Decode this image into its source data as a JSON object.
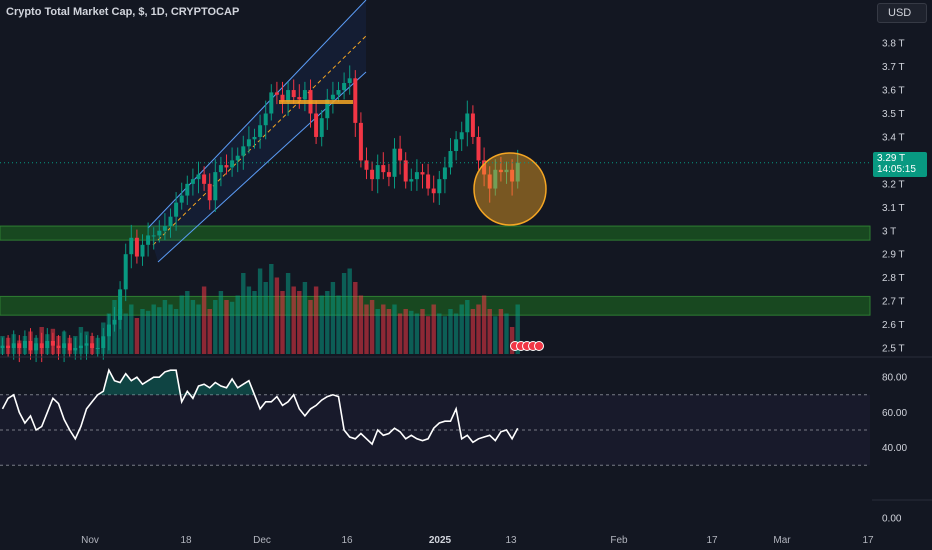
{
  "header": {
    "title": "Crypto Total Market Cap, $, 1D, CRYPTOCAP",
    "currency_button": "USD"
  },
  "last_price": {
    "value": "3.29 T",
    "countdown": "14:05:15",
    "price": 3.29
  },
  "colors": {
    "background": "#131722",
    "up": "#089981",
    "down": "#f23645",
    "rsi_line": "#ffffff",
    "zone": "#1b5e20",
    "annotation": "#f5a623"
  },
  "chart_data": [
    {
      "type": "candlestick",
      "title": "Crypto Total Market Cap, $, 1D, CRYPTOCAP",
      "ylim": [
        2.47,
        3.93
      ],
      "y_ticks": [
        "3.8 T",
        "3.7 T",
        "3.6 T",
        "3.5 T",
        "3.4 T",
        "3.2 T",
        "3.1 T",
        "3 T",
        "2.9 T",
        "2.8 T",
        "2.7 T",
        "2.6 T",
        "2.5 T"
      ],
      "y_tick_values": [
        3.8,
        3.7,
        3.6,
        3.5,
        3.4,
        3.2,
        3.1,
        3.0,
        2.9,
        2.8,
        2.7,
        2.6,
        2.5
      ],
      "x_ticks": [
        "Nov",
        "18",
        "Dec",
        "16",
        "2025",
        "13",
        "Feb",
        "17",
        "Mar",
        "17"
      ],
      "support_zones": [
        [
          2.96,
          3.02
        ],
        [
          2.64,
          2.72
        ]
      ],
      "closes": [
        2.51,
        2.5,
        2.52,
        2.5,
        2.53,
        2.49,
        2.52,
        2.5,
        2.53,
        2.51,
        2.5,
        2.52,
        2.49,
        2.5,
        2.51,
        2.52,
        2.5,
        2.5,
        2.55,
        2.6,
        2.62,
        2.75,
        2.9,
        2.97,
        2.89,
        2.94,
        2.98,
        2.98,
        3.0,
        3.02,
        3.06,
        3.12,
        3.15,
        3.2,
        3.22,
        3.24,
        3.2,
        3.13,
        3.25,
        3.28,
        3.27,
        3.3,
        3.32,
        3.36,
        3.39,
        3.4,
        3.45,
        3.5,
        3.59,
        3.58,
        3.55,
        3.6,
        3.57,
        3.56,
        3.6,
        3.5,
        3.4,
        3.48,
        3.56,
        3.58,
        3.6,
        3.63,
        3.65,
        3.46,
        3.3,
        3.26,
        3.22,
        3.28,
        3.25,
        3.23,
        3.35,
        3.3,
        3.21,
        3.22,
        3.25,
        3.24,
        3.18,
        3.16,
        3.22,
        3.27,
        3.34,
        3.39,
        3.42,
        3.5,
        3.4,
        3.3,
        3.24,
        3.18,
        3.26,
        3.25,
        3.26,
        3.21,
        3.29
      ],
      "volumes": [
        0.2,
        0.18,
        0.22,
        0.15,
        0.2,
        0.25,
        0.18,
        0.3,
        0.22,
        0.28,
        0.2,
        0.25,
        0.18,
        0.2,
        0.3,
        0.25,
        0.2,
        0.18,
        0.35,
        0.45,
        0.6,
        0.5,
        0.45,
        0.55,
        0.4,
        0.5,
        0.48,
        0.55,
        0.52,
        0.6,
        0.55,
        0.5,
        0.65,
        0.7,
        0.6,
        0.55,
        0.75,
        0.5,
        0.6,
        0.7,
        0.6,
        0.58,
        0.65,
        0.9,
        0.75,
        0.7,
        0.95,
        0.8,
        1.0,
        0.85,
        0.7,
        0.9,
        0.75,
        0.7,
        0.8,
        0.6,
        0.75,
        0.65,
        0.7,
        0.8,
        0.65,
        0.9,
        0.95,
        0.8,
        0.65,
        0.55,
        0.6,
        0.5,
        0.55,
        0.5,
        0.55,
        0.45,
        0.5,
        0.48,
        0.45,
        0.5,
        0.42,
        0.55,
        0.45,
        0.42,
        0.5,
        0.45,
        0.55,
        0.6,
        0.5,
        0.55,
        0.65,
        0.5,
        0.42,
        0.5,
        0.45,
        0.3,
        0.55
      ]
    },
    {
      "type": "line",
      "ylim": [
        0,
        90
      ],
      "y_ticks": [
        "80.00",
        "60.00",
        "40.00",
        "0.00"
      ],
      "y_tick_values": [
        80,
        60,
        40,
        0
      ],
      "bands": [
        30,
        50,
        70
      ],
      "values": [
        62,
        68,
        70,
        60,
        54,
        58,
        50,
        52,
        60,
        68,
        65,
        56,
        50,
        45,
        52,
        62,
        66,
        70,
        72,
        84,
        78,
        77,
        82,
        78,
        80,
        76,
        78,
        80,
        80,
        83,
        84,
        84,
        66,
        72,
        68,
        75,
        76,
        74,
        77,
        75,
        74,
        79,
        74,
        76,
        78,
        70,
        62,
        66,
        66,
        69,
        64,
        66,
        70,
        62,
        58,
        62,
        64,
        67,
        69,
        70,
        69,
        50,
        46,
        45,
        48,
        45,
        42,
        50,
        47,
        48,
        51,
        49,
        45,
        47,
        45,
        44,
        45,
        51,
        54,
        55,
        55,
        62,
        45,
        47,
        43,
        45,
        46,
        47,
        44,
        49,
        50,
        45,
        51
      ]
    }
  ]
}
